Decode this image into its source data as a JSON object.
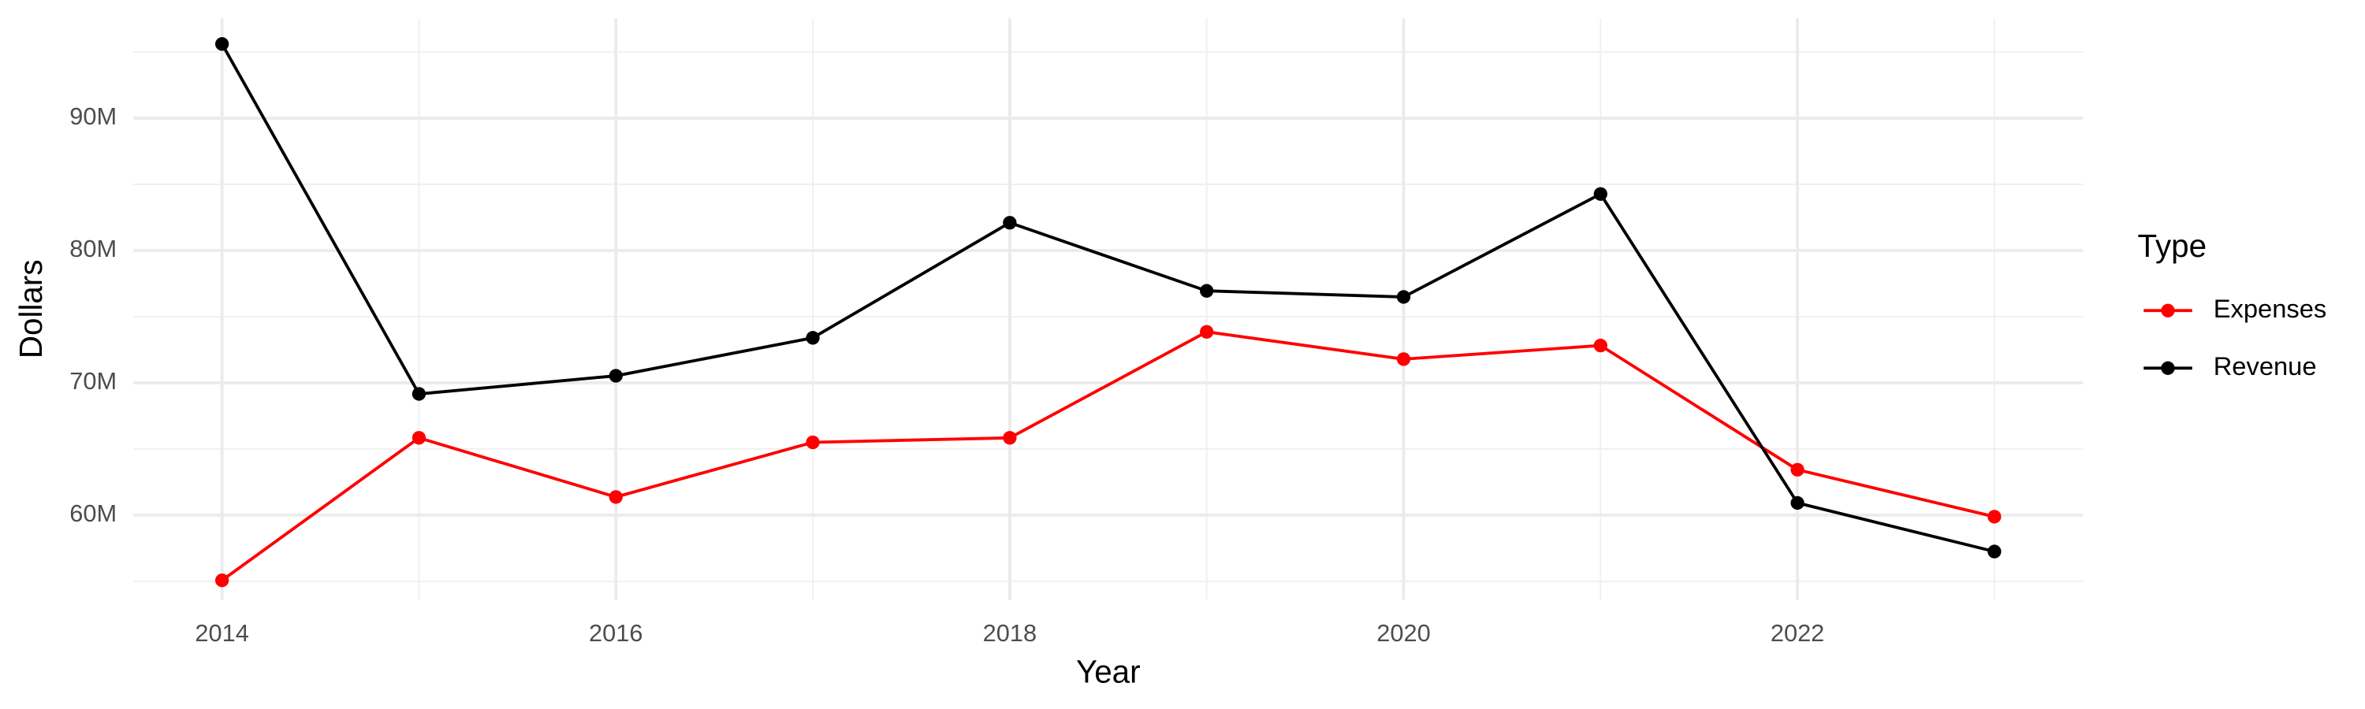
{
  "chart_data": {
    "type": "line",
    "x_label": "Year",
    "y_label": "Dollars",
    "legend_title": "Type",
    "x": [
      2014,
      2015,
      2016,
      2017,
      2018,
      2019,
      2020,
      2021,
      2022,
      2023
    ],
    "series": [
      {
        "name": "Expenses",
        "color": "#ff0000",
        "values": [
          55070000,
          65840000,
          61370000,
          65500000,
          65840000,
          73850000,
          71790000,
          72820000,
          63430000,
          59880000
        ]
      },
      {
        "name": "Revenue",
        "color": "#000000",
        "values": [
          95610000,
          69160000,
          70530000,
          73400000,
          82100000,
          76950000,
          76490000,
          84270000,
          60920000,
          57250000
        ]
      }
    ],
    "xlim": [
      2013.55,
      2023.45
    ],
    "xticks": [
      2014,
      2016,
      2018,
      2020,
      2022
    ],
    "ylim": [
      53590000,
      97560000
    ],
    "yticks": [
      {
        "value": 60000000,
        "label": "60M"
      },
      {
        "value": 70000000,
        "label": "70M"
      },
      {
        "value": 80000000,
        "label": "80M"
      },
      {
        "value": 90000000,
        "label": "90M"
      }
    ],
    "grid": true,
    "legend": "right"
  }
}
